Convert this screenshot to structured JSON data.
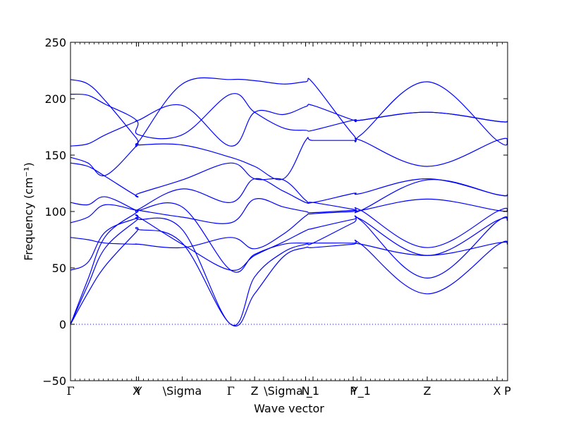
{
  "chart_data": {
    "type": "line",
    "title": "",
    "xlabel": "Wave vector",
    "ylabel": "Frequency (cm⁻¹)",
    "ylim": [
      -50,
      250
    ],
    "yticks": [
      -50,
      0,
      50,
      100,
      150,
      200,
      250
    ],
    "grid": false,
    "legend": "none",
    "line_color": "#0000ff",
    "zero_line_color": "#0000ff",
    "zero_line_style": "dotted",
    "kpath_labels": [
      {
        "label": "Γ",
        "x": 0.0
      },
      {
        "label": "X",
        "x": 0.1507
      },
      {
        "label": "Y",
        "x": 0.1558
      },
      {
        "label": "\\Sigma",
        "x": 0.2556
      },
      {
        "label": "Γ",
        "x": 0.3667
      },
      {
        "label": "Z",
        "x": 0.4212
      },
      {
        "label": "\\Sigma",
        "x": 0.4872
      },
      {
        "label": "N",
        "x": 0.5379
      },
      {
        "label": "_1",
        "x": 0.5548
      },
      {
        "label": "P",
        "x": 0.6468
      },
      {
        "label": "Y_1",
        "x": 0.6645
      },
      {
        "label": "Z",
        "x": 0.8161
      },
      {
        "label": "X",
        "x": 0.9758
      },
      {
        "label": "P",
        "x": 1.0
      }
    ],
    "series": [
      {
        "x": [
          0,
          0.04,
          0.08,
          0.1507,
          0.1558,
          0.2556,
          0.3667,
          0.4212,
          0.4872,
          0.5379,
          0.5548,
          0.6468,
          0.6645,
          0.8161,
          0.9758,
          1.0
        ],
        "y": [
          0,
          28,
          52,
          82,
          84,
          72,
          0,
          27,
          60,
          68,
          68,
          71,
          71,
          27,
          70,
          71
        ]
      },
      {
        "x": [
          0,
          0.04,
          0.08,
          0.1507,
          0.1558,
          0.2556,
          0.3667,
          0.4212,
          0.4872,
          0.5379,
          0.5548,
          0.6468,
          0.6645,
          0.8161,
          0.9758,
          1.0
        ],
        "y": [
          0,
          35,
          68,
          92,
          93,
          84,
          0,
          42,
          64,
          71,
          72,
          90,
          92,
          41,
          91,
          92
        ]
      },
      {
        "x": [
          0,
          0.04,
          0.08,
          0.1507,
          0.1558,
          0.2556,
          0.3667,
          0.4212,
          0.4872,
          0.5379,
          0.5548,
          0.6468,
          0.6645,
          0.8161,
          0.9758,
          1.0
        ],
        "y": [
          0,
          40,
          78,
          99,
          101,
          104,
          48,
          62,
          71,
          72,
          72,
          72,
          71,
          61,
          72,
          72
        ]
      },
      {
        "x": [
          0,
          0.04,
          0.08,
          0.1507,
          0.1558,
          0.2556,
          0.3667,
          0.4212,
          0.4872,
          0.5379,
          0.5548,
          0.6468,
          0.6645,
          0.8161,
          0.9758,
          1.0
        ],
        "y": [
          48,
          55,
          82,
          94,
          95,
          71,
          48,
          61,
          73,
          83,
          85,
          93,
          93,
          61,
          92,
          92
        ]
      },
      {
        "x": [
          0,
          0.04,
          0.08,
          0.1507,
          0.1558,
          0.2556,
          0.3667,
          0.4212,
          0.4872,
          0.5379,
          0.5548,
          0.6468,
          0.6645,
          0.8161,
          0.9758,
          1.0
        ],
        "y": [
          77,
          75,
          72,
          71,
          71,
          68,
          77,
          67,
          80,
          96,
          98,
          100,
          101,
          68,
          100,
          101
        ]
      },
      {
        "x": [
          0,
          0.04,
          0.08,
          0.1507,
          0.1558,
          0.2556,
          0.3667,
          0.4212,
          0.4872,
          0.5379,
          0.5548,
          0.6468,
          0.6645,
          0.8161,
          0.9758,
          1.0
        ],
        "y": [
          90,
          95,
          106,
          101,
          101,
          95,
          90,
          111,
          104,
          100,
          99,
          101,
          101,
          111,
          101,
          101
        ]
      },
      {
        "x": [
          0,
          0.04,
          0.08,
          0.1507,
          0.1558,
          0.2556,
          0.3667,
          0.4212,
          0.4872,
          0.5379,
          0.5548,
          0.6468,
          0.6645,
          0.8161,
          0.9758,
          1.0
        ],
        "y": [
          108,
          106,
          113,
          101,
          102,
          120,
          108,
          129,
          118,
          108,
          108,
          102,
          101,
          128,
          115,
          115
        ]
      },
      {
        "x": [
          0,
          0.04,
          0.08,
          0.1507,
          0.1558,
          0.2556,
          0.3667,
          0.4212,
          0.4872,
          0.5379,
          0.5548,
          0.6468,
          0.6645,
          0.8161,
          0.9758,
          1.0
        ],
        "y": [
          143,
          140,
          131,
          114,
          116,
          128,
          143,
          129,
          128,
          110,
          108,
          116,
          116,
          129,
          115,
          115
        ]
      },
      {
        "x": [
          0,
          0.04,
          0.08,
          0.1507,
          0.1558,
          0.2556,
          0.3667,
          0.4212,
          0.4872,
          0.5379,
          0.5548,
          0.6468,
          0.6645,
          0.8161,
          0.9758,
          1.0
        ],
        "y": [
          148,
          143,
          132,
          158,
          159,
          159,
          148,
          140,
          129,
          163,
          163,
          163,
          163,
          140,
          163,
          163
        ]
      },
      {
        "x": [
          0,
          0.04,
          0.08,
          0.1507,
          0.1558,
          0.2556,
          0.3667,
          0.4212,
          0.4872,
          0.5379,
          0.5548,
          0.6468,
          0.6645,
          0.8161,
          0.9758,
          1.0
        ],
        "y": [
          158,
          160,
          168,
          180,
          181,
          194,
          158,
          188,
          186,
          193,
          194,
          181,
          181,
          188,
          180,
          180
        ]
      },
      {
        "x": [
          0,
          0.04,
          0.08,
          0.1507,
          0.1558,
          0.2556,
          0.3667,
          0.4212,
          0.4872,
          0.5379,
          0.5548,
          0.6468,
          0.6645,
          0.8161,
          0.9758,
          1.0
        ],
        "y": [
          204,
          203,
          195,
          181,
          168,
          168,
          204,
          188,
          174,
          172,
          172,
          181,
          181,
          188,
          180,
          180
        ]
      },
      {
        "x": [
          0,
          0.04,
          0.08,
          0.1507,
          0.1558,
          0.2556,
          0.3667,
          0.4212,
          0.4872,
          0.5379,
          0.5548,
          0.6468,
          0.6645,
          0.8161,
          0.9758,
          1.0
        ],
        "y": [
          217,
          213,
          198,
          165,
          162,
          213,
          217,
          216,
          213,
          215,
          214,
          168,
          168,
          215,
          163,
          163
        ]
      }
    ]
  }
}
